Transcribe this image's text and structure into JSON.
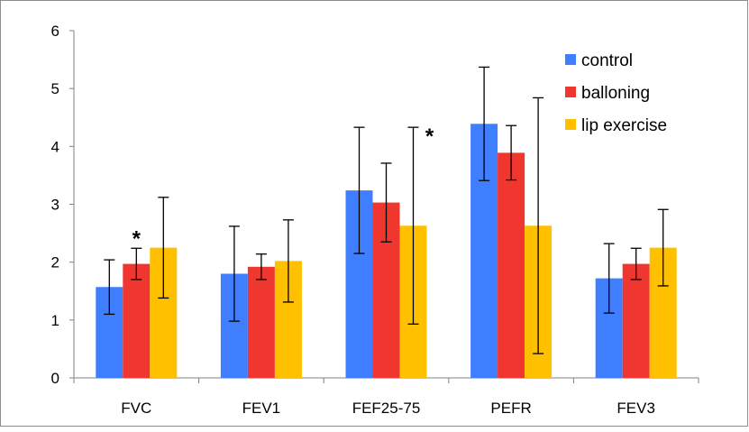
{
  "chart_data": {
    "type": "bar",
    "title": "",
    "xlabel": "",
    "ylabel": "",
    "ylim": [
      0,
      6
    ],
    "yticks": [
      "0",
      "1",
      "2",
      "3",
      "4",
      "5",
      "6"
    ],
    "grid": false,
    "legend_position": "top-right",
    "error_bars": true,
    "categories": [
      "FVC",
      "FEV1",
      "FEF25-75",
      "PEFR",
      "FEV3"
    ],
    "series": [
      {
        "name": "control",
        "color": "#3F7FFF",
        "values": [
          1.57,
          1.8,
          3.24,
          4.39,
          1.72
        ],
        "errors": [
          0.47,
          0.82,
          1.09,
          0.98,
          0.6
        ]
      },
      {
        "name": "balloning",
        "color": "#F0372F",
        "values": [
          1.97,
          1.92,
          3.03,
          3.89,
          1.97
        ],
        "errors": [
          0.27,
          0.22,
          0.68,
          0.47,
          0.27
        ]
      },
      {
        "name": "lip exercise",
        "color": "#FFC000",
        "values": [
          2.25,
          2.02,
          2.63,
          2.63,
          2.25
        ],
        "errors": [
          0.87,
          0.71,
          1.7,
          2.21,
          0.66
        ]
      }
    ],
    "annotations": [
      {
        "text": "*",
        "category": "FVC",
        "series": "balloning",
        "value": 2.25
      },
      {
        "text": "*",
        "category": "FEF25-75",
        "series": "lip exercise",
        "value": 4.33
      }
    ]
  }
}
